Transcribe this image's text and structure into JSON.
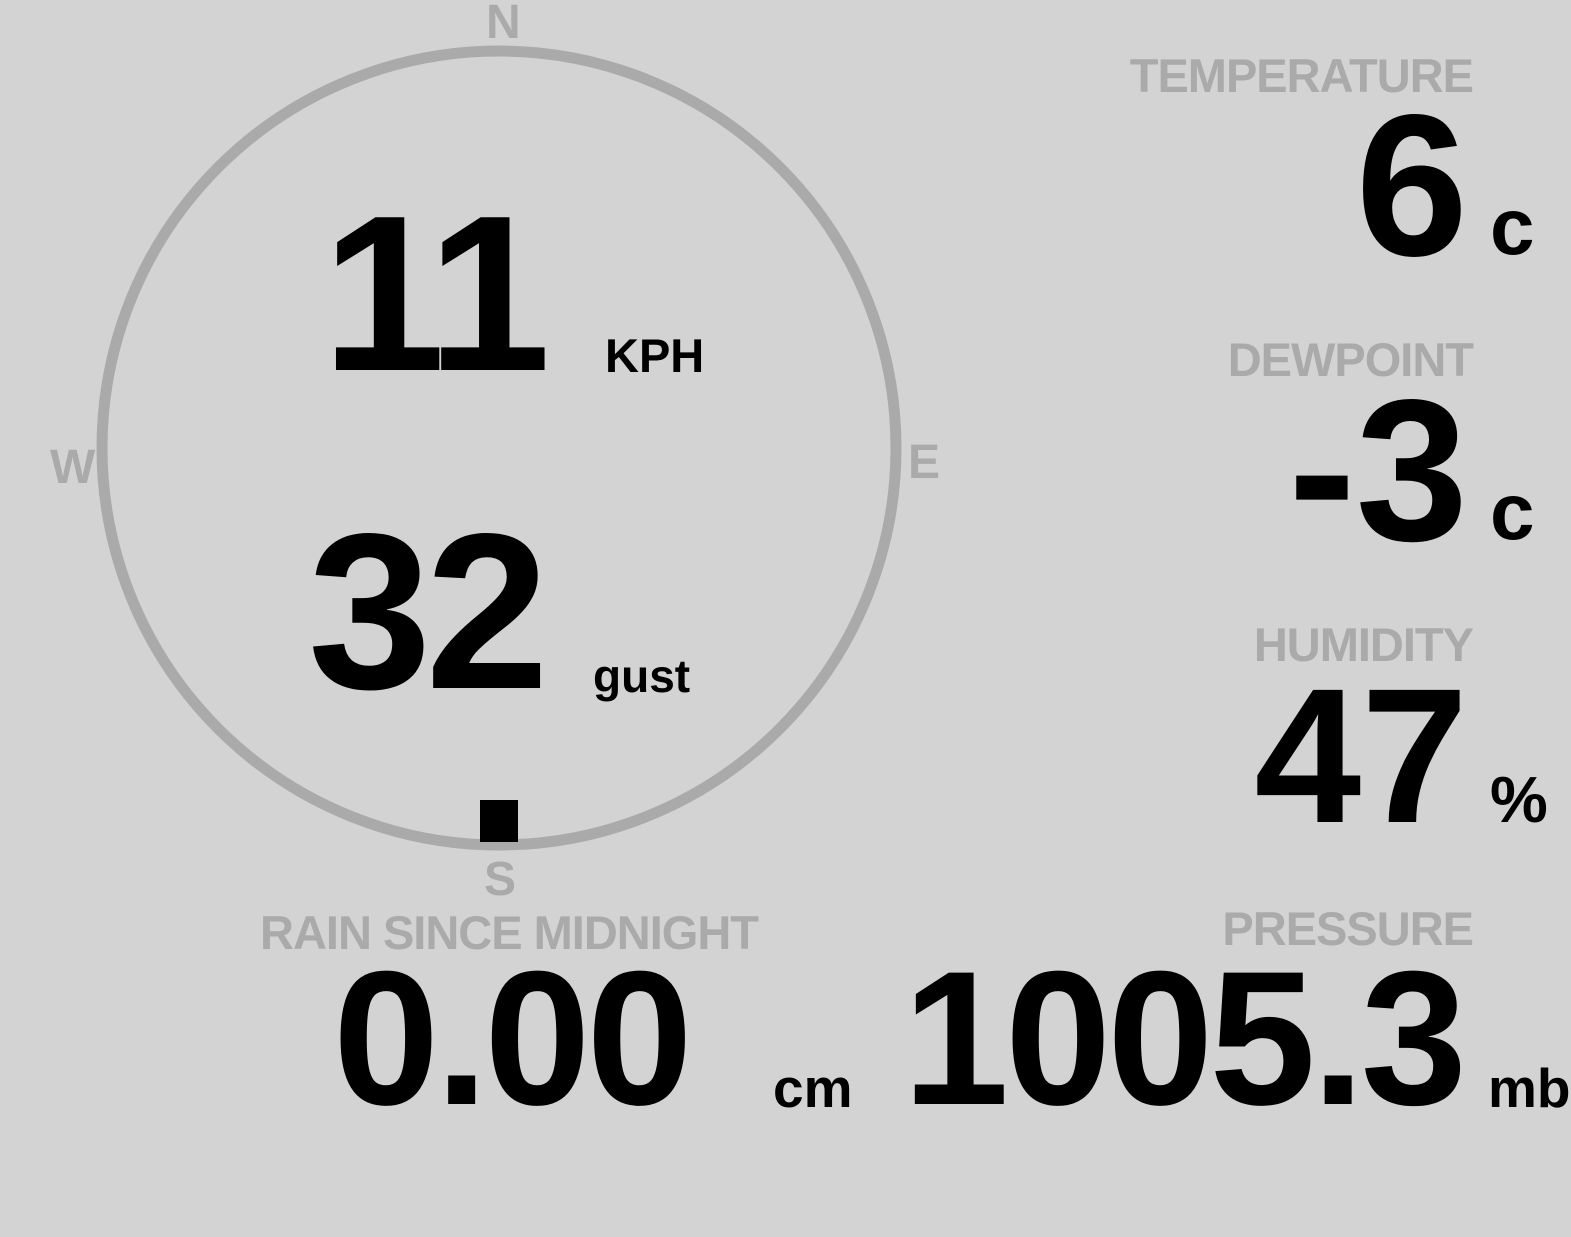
{
  "wind": {
    "speed": "11",
    "speed_unit": "KPH",
    "gust": "32",
    "gust_unit": "gust",
    "direction_deg": 180,
    "cardinals": {
      "n": "N",
      "e": "E",
      "s": "S",
      "w": "W"
    }
  },
  "temperature": {
    "label": "TEMPERATURE",
    "value": "6",
    "unit": "c"
  },
  "dewpoint": {
    "label": "DEWPOINT",
    "value": "-3",
    "unit": "c"
  },
  "humidity": {
    "label": "HUMIDITY",
    "value": "47",
    "unit": "%"
  },
  "pressure": {
    "label": "PRESSURE",
    "value": "1005.3",
    "unit": "mb"
  },
  "rain": {
    "label": "RAIN SINCE MIDNIGHT",
    "value": "0.00",
    "unit": "cm"
  },
  "colors": {
    "background": "#d3d3d3",
    "label": "#aaaaaa",
    "value": "#000000"
  }
}
